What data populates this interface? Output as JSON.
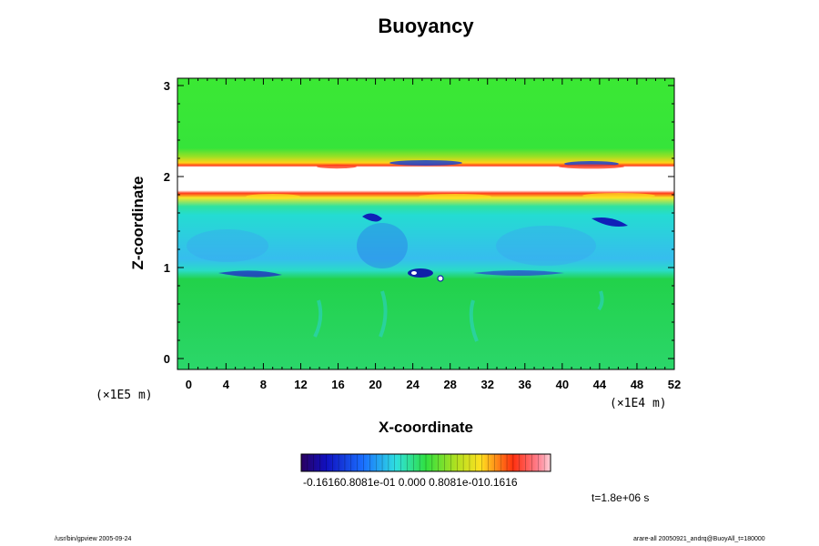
{
  "chart_data": {
    "type": "heatmap",
    "title": "Buoyancy",
    "xlabel": "X-coordinate",
    "ylabel": "Z-coordinate",
    "x_unit": "(×1E5 m)",
    "x_unit_right": "(×1E4 m)",
    "x_ticks": [
      "0",
      "4",
      "8",
      "12",
      "16",
      "20",
      "24",
      "28",
      "32",
      "36",
      "40",
      "44",
      "48",
      "52"
    ],
    "x_tick_values": [
      0,
      4,
      8,
      12,
      16,
      20,
      24,
      28,
      32,
      36,
      40,
      44,
      48,
      52
    ],
    "y_ticks": [
      "0",
      "1",
      "2",
      "3"
    ],
    "y_tick_values": [
      0,
      1,
      2,
      3
    ],
    "xlim": [
      -1.2,
      52
    ],
    "ylim": [
      -0.12,
      3.08
    ],
    "colorbar": {
      "min": -0.1616,
      "max": 0.1616,
      "tick_text": "-0.16160.8081e-01 0.000 0.8081e-010.1616"
    },
    "time_label": "t=1.8e+06 s",
    "features": [
      {
        "z_from": 2.3,
        "z_to": 3.08,
        "value": 0.005
      },
      {
        "z_from": 2.05,
        "z_to": 2.3,
        "value": 0.06
      },
      {
        "z_from": 1.78,
        "z_to": 2.05,
        "value": "out-of-range"
      },
      {
        "z_from": 1.65,
        "z_to": 1.78,
        "value": 0.11
      },
      {
        "z_from": 0.88,
        "z_to": 1.65,
        "value": -0.06
      },
      {
        "z_from": -0.12,
        "z_to": 0.88,
        "value": 0.01
      }
    ]
  },
  "footer": {
    "left": "/usr/bin/gpview 2005-09-24",
    "right": "arare-all 20050921_andrq@BuoyAll_t=180000"
  },
  "colors": {
    "background_green": "#2be33a",
    "cyan_region": "#27e6c4",
    "warm_band": "#ff3a1a",
    "cold_spot": "#1020c8"
  }
}
